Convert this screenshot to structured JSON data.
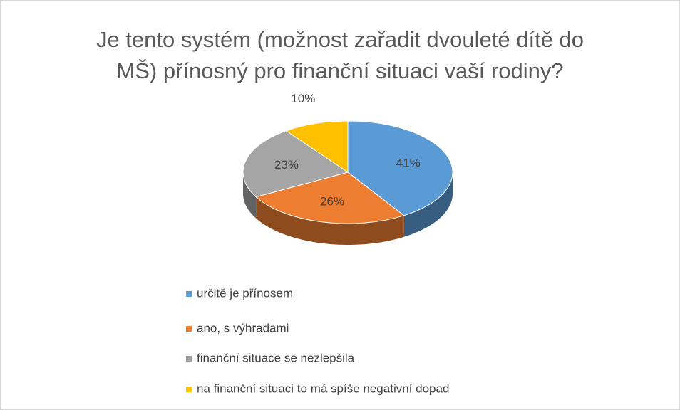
{
  "chart_data": {
    "type": "pie3d",
    "title": "Je tento systém (možnost zařadit dvouleté dítě do MŠ) přínosný pro finanční situaci vaší rodiny?",
    "categories": [
      "určitě je přínosem",
      "ano, s výhradami",
      "finanční situace se nezlepšila",
      "na finanční situaci to má spíše negativní dopad"
    ],
    "values": [
      41,
      26,
      23,
      10
    ],
    "value_labels": [
      "41%",
      "26%",
      "23%",
      "10%"
    ],
    "colors": [
      "#5b9bd5",
      "#ed7d31",
      "#a5a5a5",
      "#ffc000"
    ],
    "legend": "bottom"
  }
}
